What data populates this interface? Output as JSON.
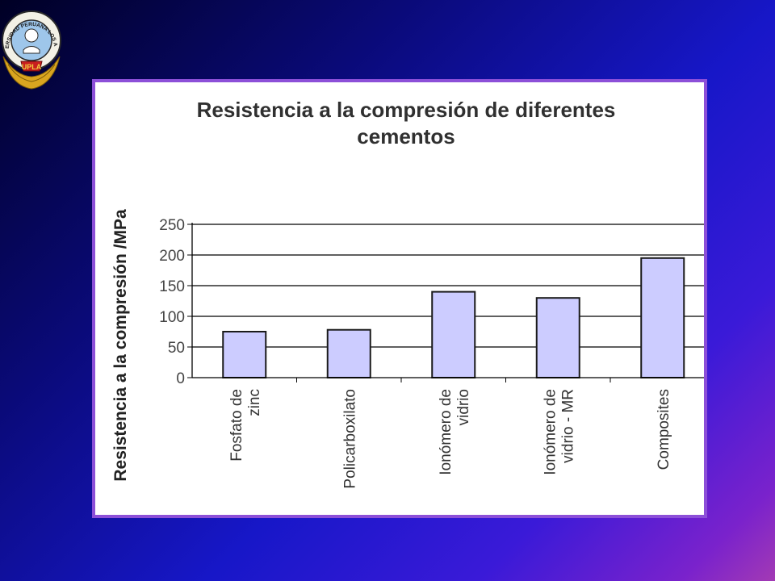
{
  "logo": {
    "ring_text": "UNIVERSIDAD PERUANA LOS ANDES",
    "badge_text": "UPLA"
  },
  "chart_data": {
    "type": "bar",
    "title_lines": [
      "Resistencia a la compresión de diferentes",
      "cementos"
    ],
    "ylabel": "Resistencia a la compresión /MPa",
    "xlabel": "",
    "categories": [
      [
        "Fosfato de",
        "zinc"
      ],
      [
        "Policarboxilato"
      ],
      [
        "Ionómero de",
        "vidrio"
      ],
      [
        "Ionómero de",
        "vidrio - MR"
      ],
      [
        "Composites"
      ]
    ],
    "values": [
      75,
      78,
      140,
      130,
      195
    ],
    "ylim": [
      0,
      250
    ],
    "yticks": [
      0,
      50,
      100,
      150,
      200,
      250
    ],
    "grid": true,
    "legend": "none",
    "colors": {
      "bar_fill": "#ccccff",
      "bar_stroke": "#1a1a1a",
      "grid": "#000000",
      "panel_border": "#8c4fd8"
    }
  }
}
